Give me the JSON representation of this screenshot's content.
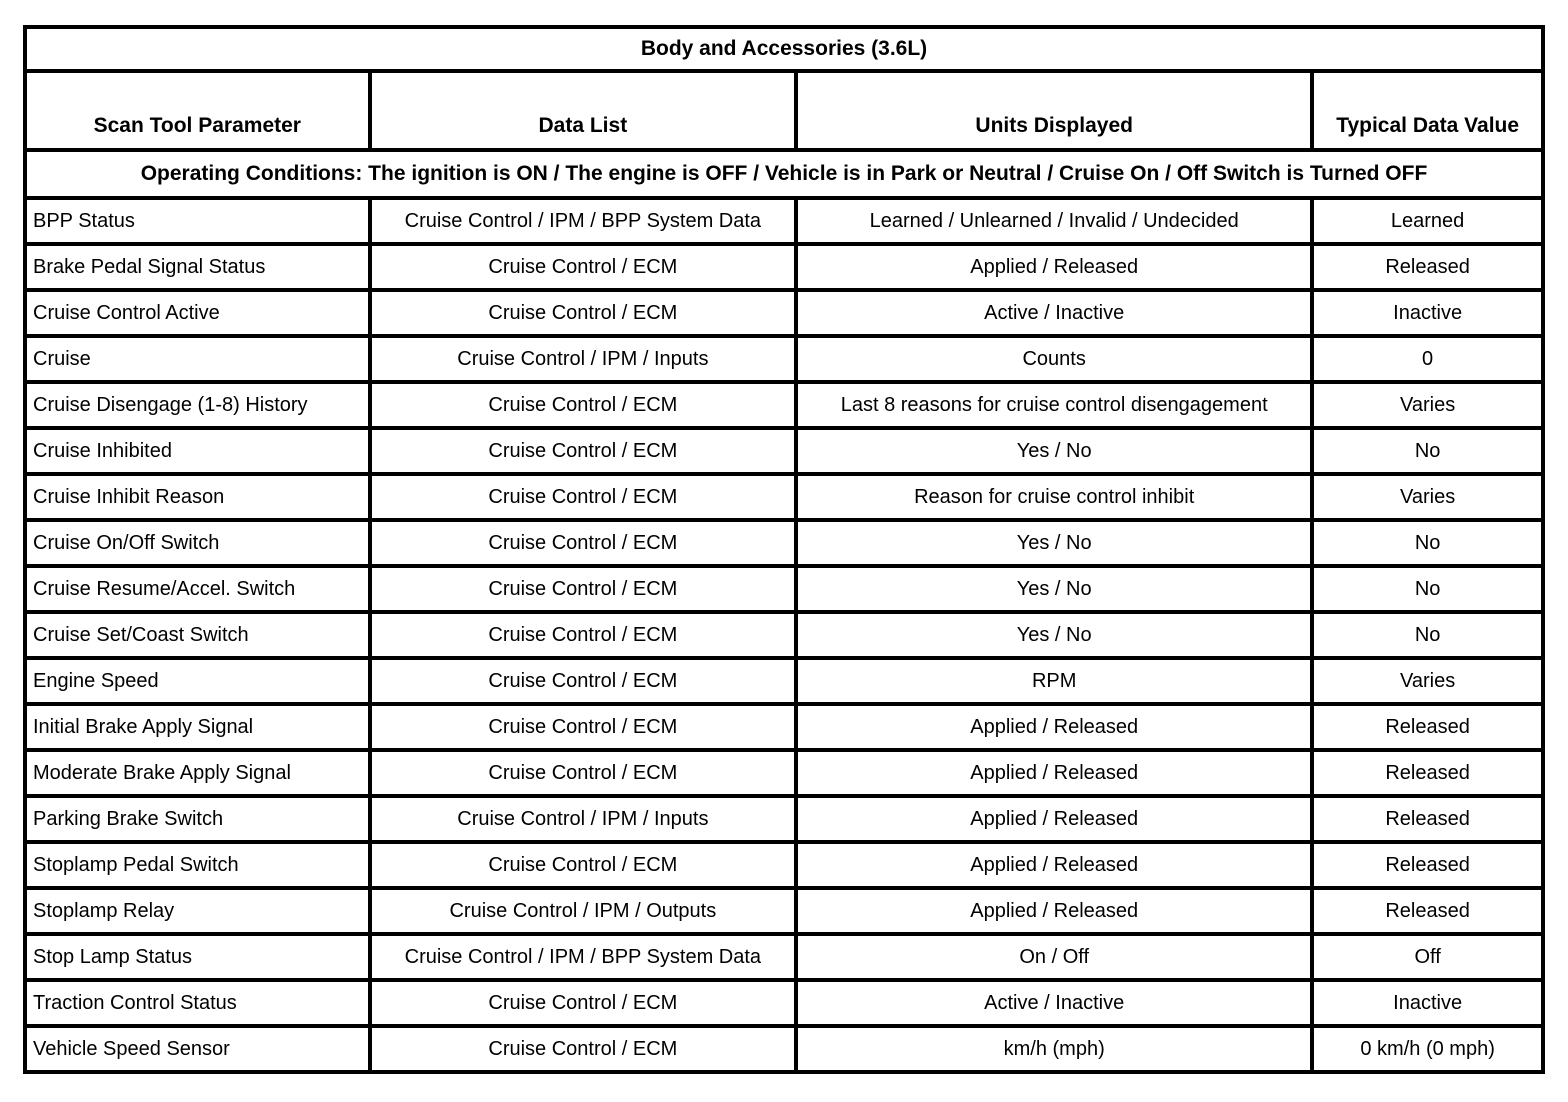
{
  "table": {
    "title": "Body and Accessories (3.6L)",
    "columns": [
      "Scan Tool Parameter",
      "Data List",
      "Units Displayed",
      "Typical Data Value"
    ],
    "operating_conditions": "Operating Conditions: The ignition is ON / The engine is OFF / Vehicle is in Park or Neutral / Cruise On / Off Switch is Turned OFF",
    "rows": [
      {
        "parameter": "BPP Status",
        "data_list": "Cruise Control / IPM / BPP System Data",
        "units": "Learned / Unlearned / Invalid / Undecided",
        "value": "Learned"
      },
      {
        "parameter": "Brake Pedal Signal Status",
        "data_list": "Cruise Control / ECM",
        "units": "Applied / Released",
        "value": "Released"
      },
      {
        "parameter": "Cruise Control Active",
        "data_list": "Cruise Control / ECM",
        "units": "Active / Inactive",
        "value": "Inactive"
      },
      {
        "parameter": "Cruise",
        "data_list": "Cruise Control / IPM / Inputs",
        "units": "Counts",
        "value": "0"
      },
      {
        "parameter": "Cruise Disengage (1-8) History",
        "data_list": "Cruise Control / ECM",
        "units": "Last 8 reasons for cruise control disengagement",
        "value": "Varies"
      },
      {
        "parameter": "Cruise Inhibited",
        "data_list": "Cruise Control / ECM",
        "units": "Yes / No",
        "value": "No"
      },
      {
        "parameter": "Cruise Inhibit Reason",
        "data_list": "Cruise Control / ECM",
        "units": "Reason for cruise control inhibit",
        "value": "Varies"
      },
      {
        "parameter": "Cruise On/Off Switch",
        "data_list": "Cruise Control / ECM",
        "units": "Yes / No",
        "value": "No"
      },
      {
        "parameter": "Cruise Resume/Accel. Switch",
        "data_list": "Cruise Control / ECM",
        "units": "Yes / No",
        "value": "No"
      },
      {
        "parameter": "Cruise Set/Coast Switch",
        "data_list": "Cruise Control / ECM",
        "units": "Yes / No",
        "value": "No"
      },
      {
        "parameter": "Engine Speed",
        "data_list": "Cruise Control / ECM",
        "units": "RPM",
        "value": "Varies"
      },
      {
        "parameter": "Initial Brake Apply Signal",
        "data_list": "Cruise Control / ECM",
        "units": "Applied / Released",
        "value": "Released"
      },
      {
        "parameter": "Moderate Brake Apply Signal",
        "data_list": "Cruise Control / ECM",
        "units": "Applied / Released",
        "value": "Released"
      },
      {
        "parameter": "Parking Brake Switch",
        "data_list": "Cruise Control / IPM / Inputs",
        "units": "Applied / Released",
        "value": "Released"
      },
      {
        "parameter": "Stoplamp Pedal Switch",
        "data_list": "Cruise Control / ECM",
        "units": "Applied / Released",
        "value": "Released"
      },
      {
        "parameter": "Stoplamp Relay",
        "data_list": "Cruise Control / IPM / Outputs",
        "units": "Applied / Released",
        "value": "Released"
      },
      {
        "parameter": "Stop Lamp Status",
        "data_list": "Cruise Control / IPM / BPP System Data",
        "units": "On / Off",
        "value": "Off"
      },
      {
        "parameter": "Traction Control Status",
        "data_list": "Cruise Control / ECM",
        "units": "Active / Inactive",
        "value": "Inactive"
      },
      {
        "parameter": "Vehicle Speed Sensor",
        "data_list": "Cruise Control / ECM",
        "units": "km/h (mph)",
        "value": "0 km/h (0 mph)"
      }
    ]
  }
}
